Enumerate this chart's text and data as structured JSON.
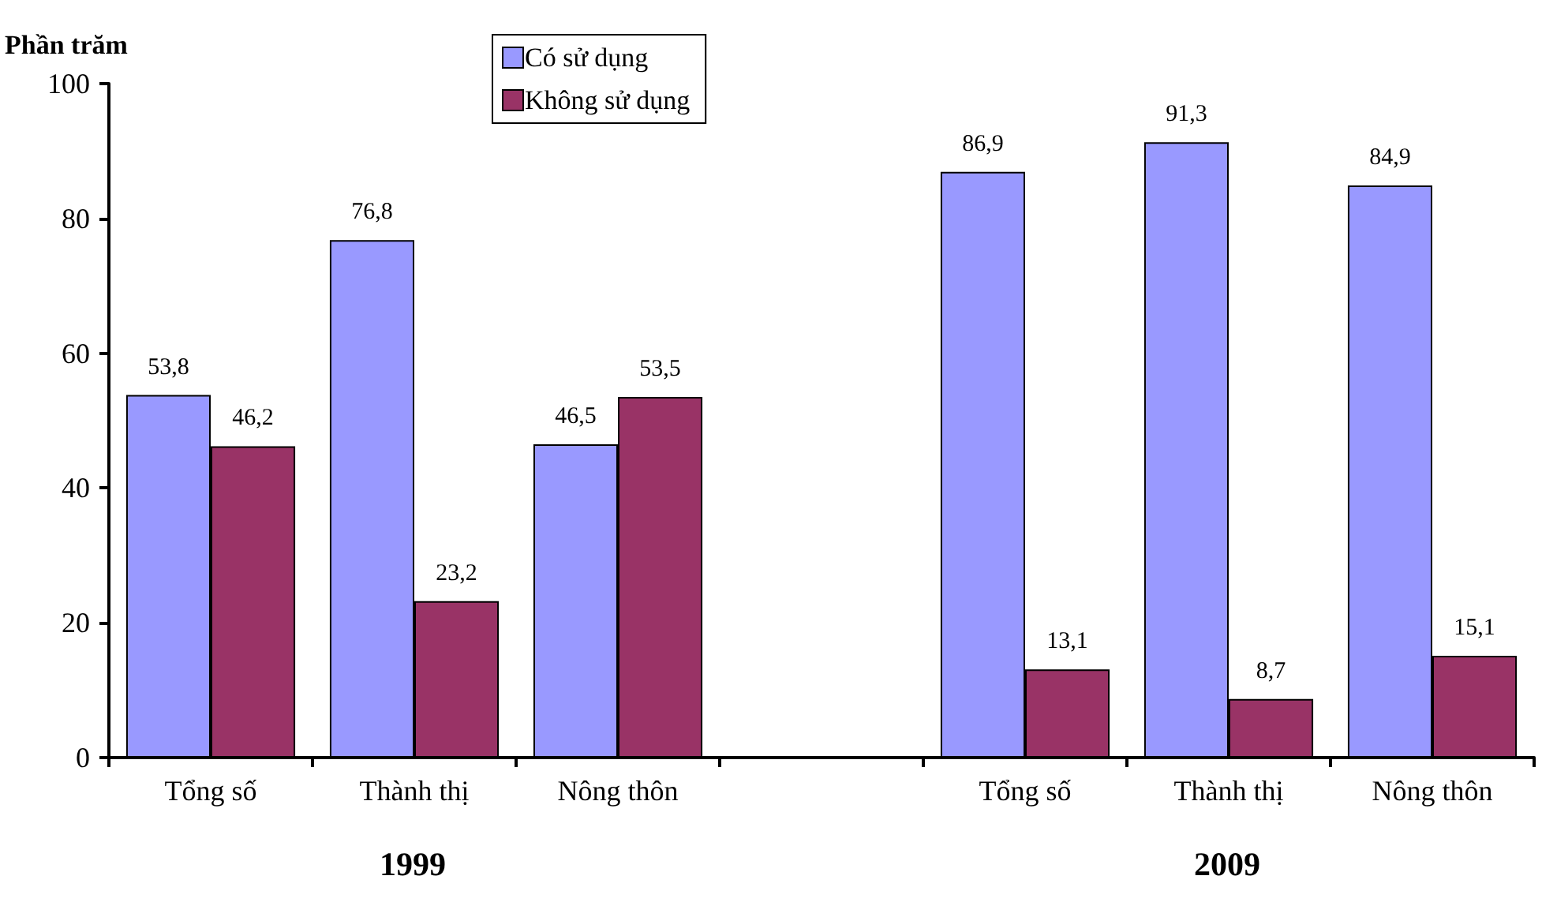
{
  "chart_data": {
    "type": "bar",
    "ylabel": "Phần trăm",
    "categories": [
      "Tổng số",
      "Thành thị",
      "Nông thôn",
      null,
      "Tổng số",
      "Thành thị",
      "Nông thôn"
    ],
    "series": [
      {
        "name": "Có sử dụng",
        "color": "#9999ff",
        "values": [
          53.8,
          76.8,
          46.5,
          null,
          86.9,
          91.3,
          84.9
        ],
        "value_labels": [
          "53,8",
          "76,8",
          "46,5",
          null,
          "86,9",
          "91,3",
          "84,9"
        ]
      },
      {
        "name": "Không sử dụng",
        "color": "#993366",
        "values": [
          46.2,
          23.2,
          53.5,
          null,
          13.1,
          8.7,
          15.1
        ],
        "value_labels": [
          "46,2",
          "23,2",
          "53,5",
          null,
          "13,1",
          "8,7",
          "15,1"
        ]
      }
    ],
    "annotations": [
      "1999",
      "2009"
    ],
    "ylim": [
      0,
      100
    ],
    "yticks": [
      0,
      20,
      40,
      60,
      80,
      100
    ],
    "grid": false,
    "legend": "top"
  }
}
